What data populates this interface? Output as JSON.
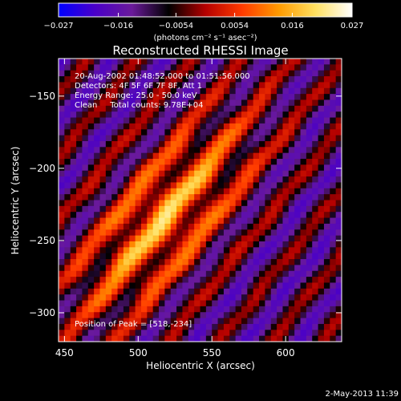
{
  "figure": {
    "title": "Reconstructed RHESSI Image",
    "footer_date": "2-May-2013 11:39",
    "info_lines": [
      "20-Aug-2002 01:48:52.000 to 01:51:56.000",
      "Detectors: 4F 5F 6F 7F 8F, Att 1",
      "Energy Range: 25.0 - 50.0 keV",
      "Clean     Total counts: 9.78E+04"
    ],
    "peak_label": "Position of Peak = [518,-234]"
  },
  "colorbar": {
    "min": -0.027,
    "max": 0.027,
    "tick_values": [
      -0.027,
      -0.016,
      -0.0054,
      0.0054,
      0.016,
      0.027
    ],
    "tick_labels": [
      "−0.027",
      "−0.016",
      "−0.0054",
      "0.0054",
      "0.016",
      "0.027"
    ],
    "units_label": "(photons cm⁻² s⁻¹ asec⁻²)",
    "colors": [
      "#0000ff",
      "#4a00c8",
      "#6a1a9a",
      "#000000",
      "#b40000",
      "#ff3a00",
      "#ff9a00",
      "#ffe060",
      "#ffffff"
    ]
  },
  "chart_data": {
    "type": "heatmap",
    "title": "Reconstructed RHESSI Image",
    "xlabel": "Heliocentric X (arcsec)",
    "ylabel": "Heliocentric Y (arcsec)",
    "xlim": [
      446,
      638
    ],
    "ylim": [
      -320,
      -124
    ],
    "x_ticks": [
      450,
      500,
      550,
      600
    ],
    "y_ticks": [
      -150,
      -200,
      -250,
      -300
    ],
    "x_tick_labels": [
      "450",
      "500",
      "550",
      "600"
    ],
    "y_tick_labels": [
      "−150",
      "−200",
      "−250",
      "−300"
    ],
    "peak": [
      518,
      -234
    ]
  }
}
